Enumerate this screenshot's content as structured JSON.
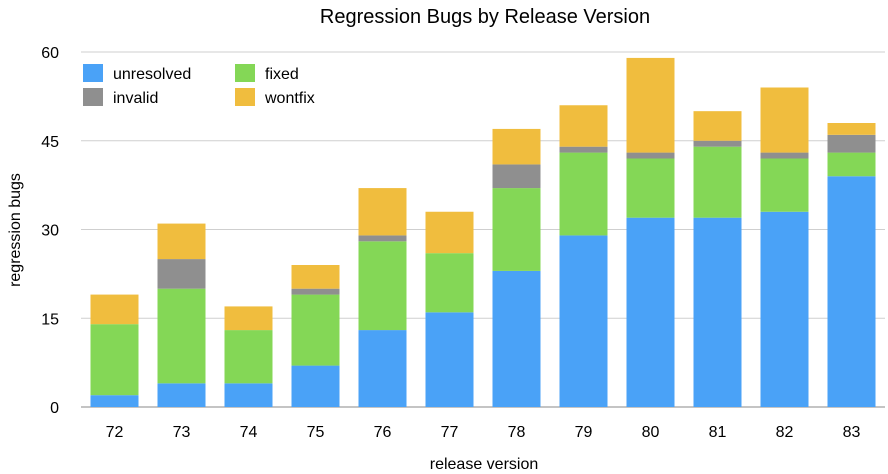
{
  "chart_data": {
    "type": "bar",
    "stacked": true,
    "title": "Regression Bugs by Release Version",
    "xlabel": "release version",
    "ylabel": "regression bugs",
    "ylim": [
      0,
      60
    ],
    "yticks": [
      0,
      15,
      30,
      45,
      60
    ],
    "grid": true,
    "legend_position": "top-left",
    "categories": [
      "72",
      "73",
      "74",
      "75",
      "76",
      "77",
      "78",
      "79",
      "80",
      "81",
      "82",
      "83"
    ],
    "series": [
      {
        "name": "unresolved",
        "color": "#4aa2f7",
        "values": [
          2,
          4,
          4,
          7,
          13,
          16,
          23,
          29,
          32,
          32,
          33,
          39
        ]
      },
      {
        "name": "fixed",
        "color": "#84d756",
        "values": [
          12,
          16,
          9,
          12,
          15,
          10,
          14,
          14,
          10,
          12,
          9,
          4
        ]
      },
      {
        "name": "invalid",
        "color": "#8f8f8f",
        "values": [
          0,
          5,
          0,
          1,
          1,
          0,
          4,
          1,
          1,
          1,
          1,
          3
        ]
      },
      {
        "name": "wontfix",
        "color": "#f0bd3e",
        "values": [
          5,
          6,
          4,
          4,
          8,
          7,
          6,
          7,
          16,
          5,
          11,
          2
        ]
      }
    ]
  }
}
